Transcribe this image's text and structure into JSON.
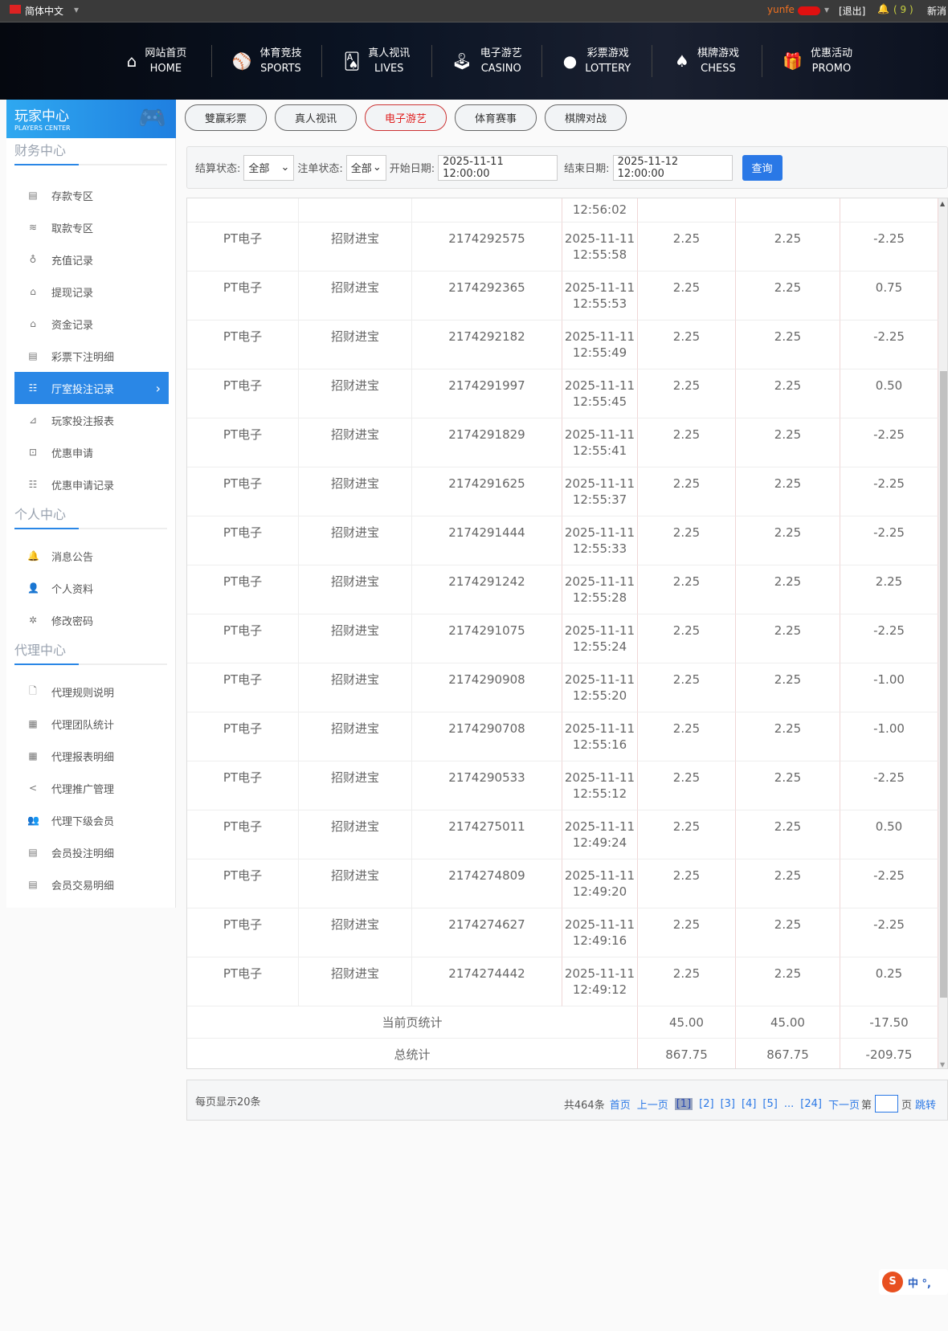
{
  "topbar": {
    "language": "简体中文",
    "username": "yunfe",
    "logout": "[退出]",
    "msg_count": "( 9 )",
    "msg_label": "新消"
  },
  "nav": [
    {
      "cn": "网站首页",
      "en": "HOME",
      "icon": "home-icon",
      "g": "⌂"
    },
    {
      "cn": "体育竞技",
      "en": "SPORTS",
      "icon": "ball-icon",
      "g": "⚾"
    },
    {
      "cn": "真人视讯",
      "en": "LIVES",
      "icon": "cards-icon",
      "g": "🂡"
    },
    {
      "cn": "电子游艺",
      "en": "CASINO",
      "icon": "joystick-icon",
      "g": "🕹"
    },
    {
      "cn": "彩票游戏",
      "en": "LOTTERY",
      "icon": "balls-icon",
      "g": "●"
    },
    {
      "cn": "棋牌游戏",
      "en": "CHESS",
      "icon": "spade-icon",
      "g": "♠"
    },
    {
      "cn": "优惠活动",
      "en": "PROMO",
      "icon": "gift-icon",
      "g": "🎁"
    }
  ],
  "sidebar": {
    "title": "玩家中心",
    "subtitle": "PLAYERS CENTER",
    "sections": [
      {
        "title": "财务中心",
        "items": [
          "存款专区",
          "取款专区",
          "充值记录",
          "提现记录",
          "资金记录",
          "彩票下注明细",
          "厅室投注记录",
          "玩家投注报表",
          "优惠申请",
          "优惠申请记录"
        ]
      },
      {
        "title": "个人中心",
        "items": [
          "消息公告",
          "个人资料",
          "修改密码"
        ]
      },
      {
        "title": "代理中心",
        "items": [
          "代理规则说明",
          "代理团队统计",
          "代理报表明细",
          "代理推广管理",
          "代理下级会员",
          "会员投注明细",
          "会员交易明细"
        ]
      }
    ],
    "active": "厅室投注记录"
  },
  "tabs": [
    {
      "label": "雙赢彩票",
      "active": false
    },
    {
      "label": "真人视讯",
      "active": false
    },
    {
      "label": "电子游艺",
      "active": true
    },
    {
      "label": "体育赛事",
      "active": false
    },
    {
      "label": "棋牌对战",
      "active": false
    }
  ],
  "filter": {
    "settle_label": "结算状态:",
    "settle_value": "全部",
    "bet_label": "注单状态:",
    "bet_value": "全部",
    "start_label": "开始日期:",
    "start_value": "2025-11-11 12:00:00",
    "end_label": "结束日期:",
    "end_value": "2025-11-12 12:00:00",
    "query": "查询"
  },
  "table": {
    "partial_time": "12:56:02",
    "rows": [
      [
        "PT电子",
        "招财进宝",
        "2174292575",
        "2025-11-11",
        "12:55:58",
        "2.25",
        "2.25",
        "-2.25"
      ],
      [
        "PT电子",
        "招财进宝",
        "2174292365",
        "2025-11-11",
        "12:55:53",
        "2.25",
        "2.25",
        "0.75"
      ],
      [
        "PT电子",
        "招财进宝",
        "2174292182",
        "2025-11-11",
        "12:55:49",
        "2.25",
        "2.25",
        "-2.25"
      ],
      [
        "PT电子",
        "招财进宝",
        "2174291997",
        "2025-11-11",
        "12:55:45",
        "2.25",
        "2.25",
        "0.50"
      ],
      [
        "PT电子",
        "招财进宝",
        "2174291829",
        "2025-11-11",
        "12:55:41",
        "2.25",
        "2.25",
        "-2.25"
      ],
      [
        "PT电子",
        "招财进宝",
        "2174291625",
        "2025-11-11",
        "12:55:37",
        "2.25",
        "2.25",
        "-2.25"
      ],
      [
        "PT电子",
        "招财进宝",
        "2174291444",
        "2025-11-11",
        "12:55:33",
        "2.25",
        "2.25",
        "-2.25"
      ],
      [
        "PT电子",
        "招财进宝",
        "2174291242",
        "2025-11-11",
        "12:55:28",
        "2.25",
        "2.25",
        "2.25"
      ],
      [
        "PT电子",
        "招财进宝",
        "2174291075",
        "2025-11-11",
        "12:55:24",
        "2.25",
        "2.25",
        "-2.25"
      ],
      [
        "PT电子",
        "招财进宝",
        "2174290908",
        "2025-11-11",
        "12:55:20",
        "2.25",
        "2.25",
        "-1.00"
      ],
      [
        "PT电子",
        "招财进宝",
        "2174290708",
        "2025-11-11",
        "12:55:16",
        "2.25",
        "2.25",
        "-1.00"
      ],
      [
        "PT电子",
        "招财进宝",
        "2174290533",
        "2025-11-11",
        "12:55:12",
        "2.25",
        "2.25",
        "-2.25"
      ],
      [
        "PT电子",
        "招财进宝",
        "2174275011",
        "2025-11-11",
        "12:49:24",
        "2.25",
        "2.25",
        "0.50"
      ],
      [
        "PT电子",
        "招财进宝",
        "2174274809",
        "2025-11-11",
        "12:49:20",
        "2.25",
        "2.25",
        "-2.25"
      ],
      [
        "PT电子",
        "招财进宝",
        "2174274627",
        "2025-11-11",
        "12:49:16",
        "2.25",
        "2.25",
        "-2.25"
      ],
      [
        "PT电子",
        "招财进宝",
        "2174274442",
        "2025-11-11",
        "12:49:12",
        "2.25",
        "2.25",
        "0.25"
      ]
    ],
    "page_stats": {
      "label": "当前页统计",
      "v1": "45.00",
      "v2": "45.00",
      "v3": "-17.50"
    },
    "total_stats": {
      "label": "总统计",
      "v1": "867.75",
      "v2": "867.75",
      "v3": "-209.75"
    }
  },
  "pager": {
    "per_page": "每页显示20条",
    "total": "共464条",
    "first": "首页",
    "prev": "上一页",
    "pages": [
      "[1]",
      "[2]",
      "[3]",
      "[4]",
      "[5]"
    ],
    "ellipsis": "...",
    "last": "[24]",
    "next": "下一页",
    "goto_prefix": "第",
    "goto_suffix": "页",
    "goto": "跳转"
  },
  "colors": {
    "accent": "#2a87e6",
    "active_tab": "#e02020",
    "username": "#f07020"
  }
}
